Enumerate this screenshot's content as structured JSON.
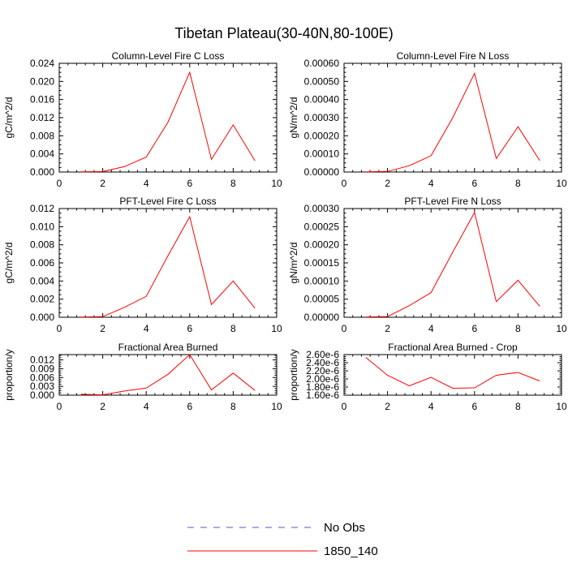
{
  "title": "Tibetan Plateau(30-40N,80-100E)",
  "colors": {
    "series": "#ff0000",
    "obs": "#5555cc",
    "axis": "#000000"
  },
  "legend": {
    "entries": [
      {
        "label": "No Obs",
        "style": "dashed",
        "color": "#5555cc"
      },
      {
        "label": "1850_140",
        "style": "solid",
        "color": "#ff0000"
      }
    ]
  },
  "chart_data": [
    {
      "type": "line",
      "title": "Column-Level Fire C Loss",
      "ylabel": "gC/m^2/d",
      "xlim": [
        0,
        10
      ],
      "ylim": [
        0,
        0.024
      ],
      "x_ticks": [
        "0",
        "2",
        "4",
        "6",
        "8",
        "10"
      ],
      "y_ticks": [
        {
          "v": 0,
          "label": "0.000"
        },
        {
          "v": 0.004,
          "label": "0.004"
        },
        {
          "v": 0.008,
          "label": "0.008"
        },
        {
          "v": 0.012,
          "label": "0.012"
        },
        {
          "v": 0.016,
          "label": "0.016"
        },
        {
          "v": 0.02,
          "label": "0.020"
        },
        {
          "v": 0.024,
          "label": "0.024"
        }
      ],
      "series": [
        {
          "name": "1850_140",
          "x": [
            1,
            2,
            3,
            4,
            5,
            6,
            7,
            8,
            9
          ],
          "values": [
            5e-05,
            0.0001,
            0.0012,
            0.0033,
            0.011,
            0.022,
            0.0028,
            0.0104,
            0.0025
          ]
        }
      ]
    },
    {
      "type": "line",
      "title": "Column-Level Fire N Loss",
      "ylabel": "gN/m^2/d",
      "xlim": [
        0,
        10
      ],
      "ylim": [
        0,
        0.0006
      ],
      "x_ticks": [
        "0",
        "2",
        "4",
        "6",
        "8",
        "10"
      ],
      "y_ticks": [
        {
          "v": 0,
          "label": "0.00000"
        },
        {
          "v": 0.0001,
          "label": "0.00010"
        },
        {
          "v": 0.0002,
          "label": "0.00020"
        },
        {
          "v": 0.0003,
          "label": "0.00030"
        },
        {
          "v": 0.0004,
          "label": "0.00040"
        },
        {
          "v": 0.0005,
          "label": "0.00050"
        },
        {
          "v": 0.0006,
          "label": "0.00060"
        }
      ],
      "series": [
        {
          "name": "1850_140",
          "x": [
            1,
            2,
            3,
            4,
            5,
            6,
            7,
            8,
            9
          ],
          "values": [
            1e-06,
            3e-06,
            3.5e-05,
            9e-05,
            0.0003,
            0.000545,
            7.5e-05,
            0.00025,
            6.3e-05
          ]
        }
      ]
    },
    {
      "type": "line",
      "title": "PFT-Level Fire C Loss",
      "ylabel": "gC/m^2/d",
      "xlim": [
        0,
        10
      ],
      "ylim": [
        0,
        0.012
      ],
      "x_ticks": [
        "0",
        "2",
        "4",
        "6",
        "8",
        "10"
      ],
      "y_ticks": [
        {
          "v": 0,
          "label": "0.000"
        },
        {
          "v": 0.002,
          "label": "0.002"
        },
        {
          "v": 0.004,
          "label": "0.004"
        },
        {
          "v": 0.006,
          "label": "0.006"
        },
        {
          "v": 0.008,
          "label": "0.008"
        },
        {
          "v": 0.01,
          "label": "0.010"
        },
        {
          "v": 0.012,
          "label": "0.012"
        }
      ],
      "series": [
        {
          "name": "1850_140",
          "x": [
            1,
            2,
            3,
            4,
            5,
            6,
            7,
            8,
            9
          ],
          "values": [
            3e-05,
            6e-05,
            0.0011,
            0.0023,
            0.0068,
            0.0111,
            0.0014,
            0.004,
            0.001
          ]
        }
      ]
    },
    {
      "type": "line",
      "title": "PFT-Level Fire N Loss",
      "ylabel": "gN/m^2/d",
      "xlim": [
        0,
        10
      ],
      "ylim": [
        0,
        0.0003
      ],
      "x_ticks": [
        "0",
        "2",
        "4",
        "6",
        "8",
        "10"
      ],
      "y_ticks": [
        {
          "v": 0,
          "label": "0.00000"
        },
        {
          "v": 5e-05,
          "label": "0.00005"
        },
        {
          "v": 0.0001,
          "label": "0.00010"
        },
        {
          "v": 0.00015,
          "label": "0.00015"
        },
        {
          "v": 0.0002,
          "label": "0.00020"
        },
        {
          "v": 0.00025,
          "label": "0.00025"
        },
        {
          "v": 0.0003,
          "label": "0.00030"
        }
      ],
      "series": [
        {
          "name": "1850_140",
          "x": [
            1,
            2,
            3,
            4,
            5,
            6,
            7,
            8,
            9
          ],
          "values": [
            1e-06,
            2e-06,
            3.2e-05,
            6.8e-05,
            0.00018,
            0.000289,
            4.3e-05,
            0.000102,
            3e-05
          ]
        }
      ]
    },
    {
      "type": "line",
      "title": "Fractional Area Burned",
      "ylabel": "proportion/y",
      "xlim": [
        0,
        10
      ],
      "ylim": [
        0,
        0.0138
      ],
      "x_ticks": [
        "0",
        "2",
        "4",
        "6",
        "8",
        "10"
      ],
      "y_ticks": [
        {
          "v": 0,
          "label": "0.000"
        },
        {
          "v": 0.003,
          "label": "0.003"
        },
        {
          "v": 0.006,
          "label": "0.006"
        },
        {
          "v": 0.009,
          "label": "0.009"
        },
        {
          "v": 0.012,
          "label": "0.012"
        }
      ],
      "series": [
        {
          "name": "1850_140",
          "x": [
            1,
            2,
            3,
            4,
            5,
            6,
            7,
            8,
            9
          ],
          "values": [
            0.0003,
            0.0001,
            0.0014,
            0.0024,
            0.0071,
            0.0138,
            0.0018,
            0.0075,
            0.0016
          ]
        }
      ]
    },
    {
      "type": "line",
      "title": "Fractional Area Burned - Crop",
      "ylabel": "proportion/y",
      "xlim": [
        0,
        10
      ],
      "ylim": [
        1.6e-06,
        2.6e-06
      ],
      "x_ticks": [
        "0",
        "2",
        "4",
        "6",
        "8",
        "10"
      ],
      "y_ticks": [
        {
          "v": 1.6e-06,
          "label": "1.60e-6"
        },
        {
          "v": 1.8e-06,
          "label": "1.80e-6"
        },
        {
          "v": 2e-06,
          "label": "2.00e-6"
        },
        {
          "v": 2.2e-06,
          "label": "2.20e-6"
        },
        {
          "v": 2.4e-06,
          "label": "2.40e-6"
        },
        {
          "v": 2.6e-06,
          "label": "2.60e-6"
        }
      ],
      "series": [
        {
          "name": "1850_140",
          "x": [
            1,
            2,
            3,
            4,
            5,
            6,
            7,
            8,
            9
          ],
          "values": [
            2.53e-06,
            2.09e-06,
            1.83e-06,
            2.04e-06,
            1.77e-06,
            1.78e-06,
            2.09e-06,
            2.16e-06,
            1.95e-06
          ]
        }
      ]
    }
  ]
}
